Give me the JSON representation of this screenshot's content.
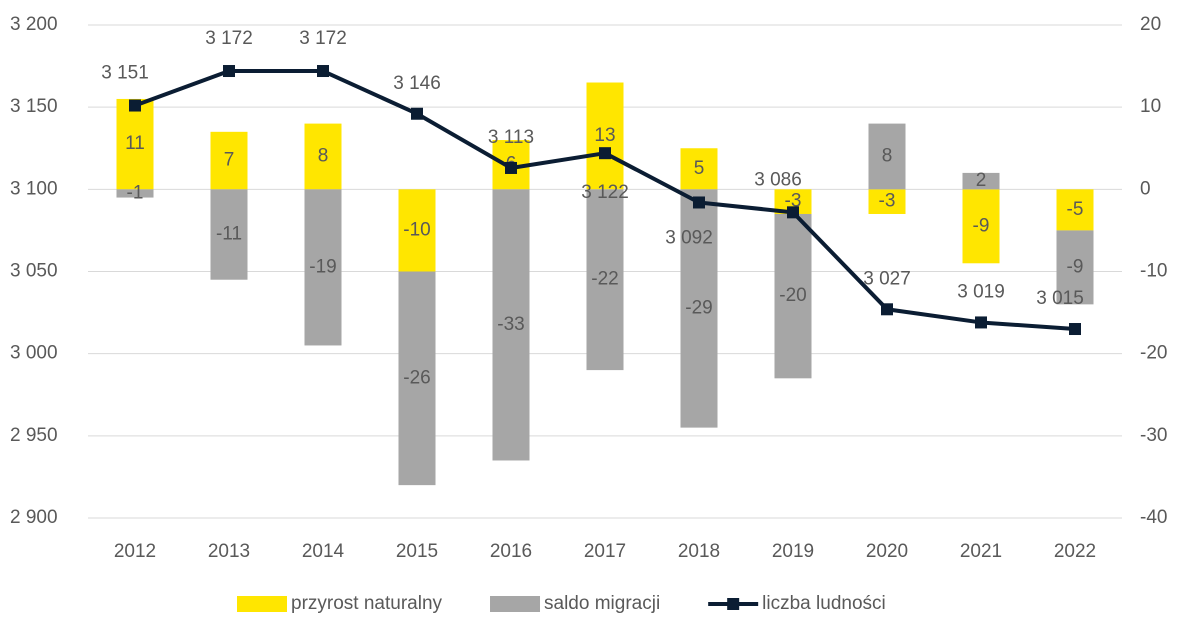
{
  "chart_data": {
    "type": "bar-line",
    "categories": [
      "2012",
      "2013",
      "2014",
      "2015",
      "2016",
      "2017",
      "2018",
      "2019",
      "2020",
      "2021",
      "2022"
    ],
    "series": [
      {
        "name": "przyrost naturalny",
        "type": "bar",
        "axis": "y2",
        "color": "#FFE600",
        "values": [
          11,
          7,
          8,
          -10,
          6,
          13,
          5,
          -3,
          -3,
          -9,
          -5
        ]
      },
      {
        "name": "saldo migracji",
        "type": "bar",
        "axis": "y2",
        "color": "#A6A6A6",
        "values": [
          -1,
          -11,
          -19,
          -26,
          -33,
          -22,
          -29,
          -20,
          8,
          2,
          -9
        ]
      },
      {
        "name": "liczba ludności",
        "type": "line",
        "axis": "y",
        "color": "#0B1D33",
        "values": [
          3151,
          3172,
          3172,
          3146,
          3113,
          3122,
          3092,
          3086,
          3027,
          3019,
          3015
        ],
        "value_labels": [
          "3 151",
          "3 172",
          "3 172",
          "3 146",
          "3 113",
          "3 122",
          "3 092",
          "3 086",
          "3 027",
          "3 019",
          "3 015"
        ]
      }
    ],
    "ylim": [
      2900,
      3200
    ],
    "yticks": [
      {
        "value": 2900,
        "label": "2 900"
      },
      {
        "value": 2950,
        "label": "2 950"
      },
      {
        "value": 3000,
        "label": "3 000"
      },
      {
        "value": 3050,
        "label": "3 050"
      },
      {
        "value": 3100,
        "label": "3 100"
      },
      {
        "value": 3150,
        "label": "3 150"
      },
      {
        "value": 3200,
        "label": "3 200"
      }
    ],
    "y2lim": [
      -40,
      20
    ],
    "y2ticks": [
      -40,
      -30,
      -20,
      -10,
      0,
      10,
      20
    ],
    "grid": true,
    "legend": "bottom"
  }
}
